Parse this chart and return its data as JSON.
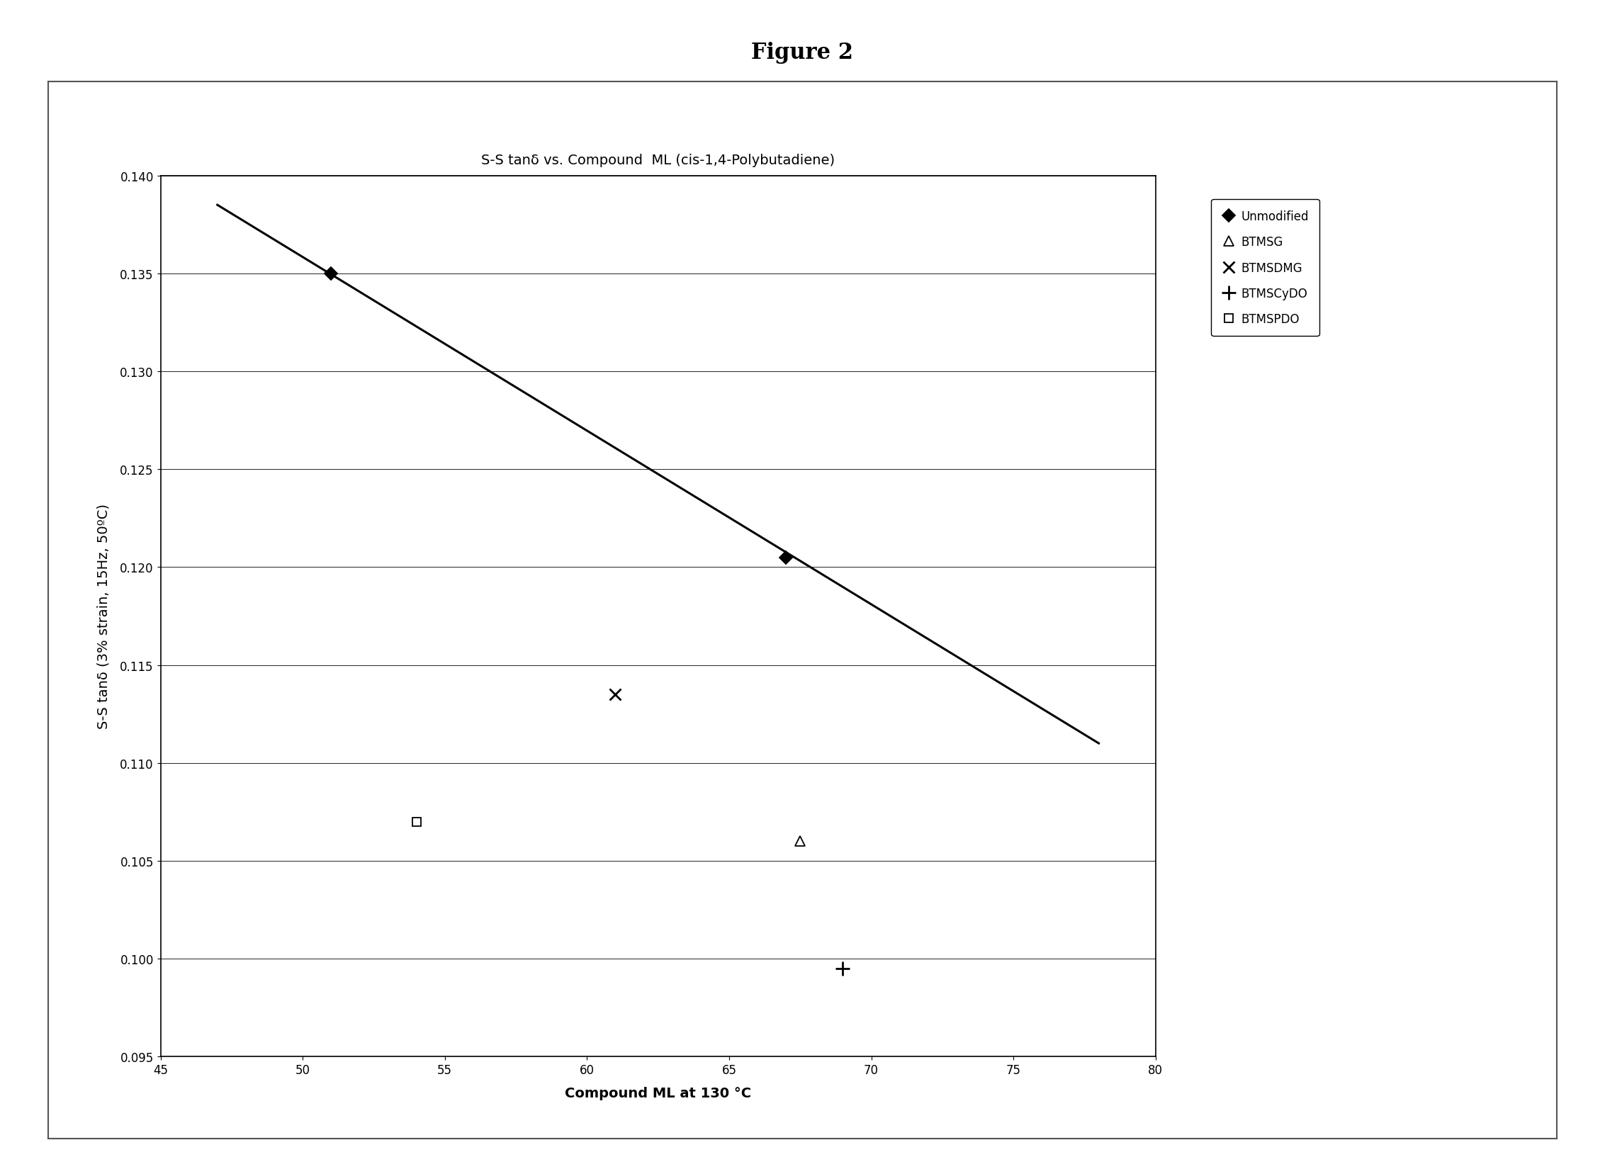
{
  "title_figure": "Figure 2",
  "chart_title": "S-S tanδ vs. Compound  ML (cis-1,4-Polybutadiene)",
  "xlabel": "Compound ML at 130 °C",
  "ylabel": "S-S tanδ (3% strain, 15Hz, 50ºC)",
  "xlim": [
    45,
    80
  ],
  "ylim": [
    0.095,
    0.14
  ],
  "xticks": [
    45,
    50,
    55,
    60,
    65,
    70,
    75,
    80
  ],
  "yticks": [
    0.095,
    0.1,
    0.105,
    0.11,
    0.115,
    0.12,
    0.125,
    0.13,
    0.135,
    0.14
  ],
  "trendline": {
    "x": [
      47.0,
      78.0
    ],
    "y": [
      0.1385,
      0.111
    ],
    "color": "#000000",
    "linewidth": 2.2
  },
  "series": [
    {
      "name": "Unmodified",
      "marker": "D",
      "markersize": 9,
      "color": "#000000",
      "markerfacecolor": "#000000",
      "data": [
        [
          51,
          0.135
        ],
        [
          67,
          0.1205
        ]
      ]
    },
    {
      "name": "BTMSG",
      "marker": "^",
      "markersize": 10,
      "color": "#000000",
      "markerfacecolor": "none",
      "data": [
        [
          67.5,
          0.106
        ]
      ]
    },
    {
      "name": "BTMSDMG",
      "marker": "x",
      "markersize": 11,
      "color": "#000000",
      "markerfacecolor": "#000000",
      "data": [
        [
          61,
          0.1135
        ]
      ]
    },
    {
      "name": "BTMSCyDO",
      "marker": "+",
      "markersize": 14,
      "color": "#000000",
      "markerfacecolor": "#000000",
      "data": [
        [
          69,
          0.0995
        ]
      ]
    },
    {
      "name": "BTMSPDO",
      "marker": "s",
      "markersize": 9,
      "color": "#000000",
      "markerfacecolor": "none",
      "data": [
        [
          54,
          0.107
        ]
      ]
    }
  ],
  "background_color": "#ffffff",
  "plot_bg_color": "#ffffff",
  "fig_title_fontsize": 22,
  "chart_title_fontsize": 14,
  "axis_label_fontsize": 14,
  "tick_fontsize": 12,
  "legend_fontsize": 12,
  "outer_box_color": "#c0c0c0"
}
